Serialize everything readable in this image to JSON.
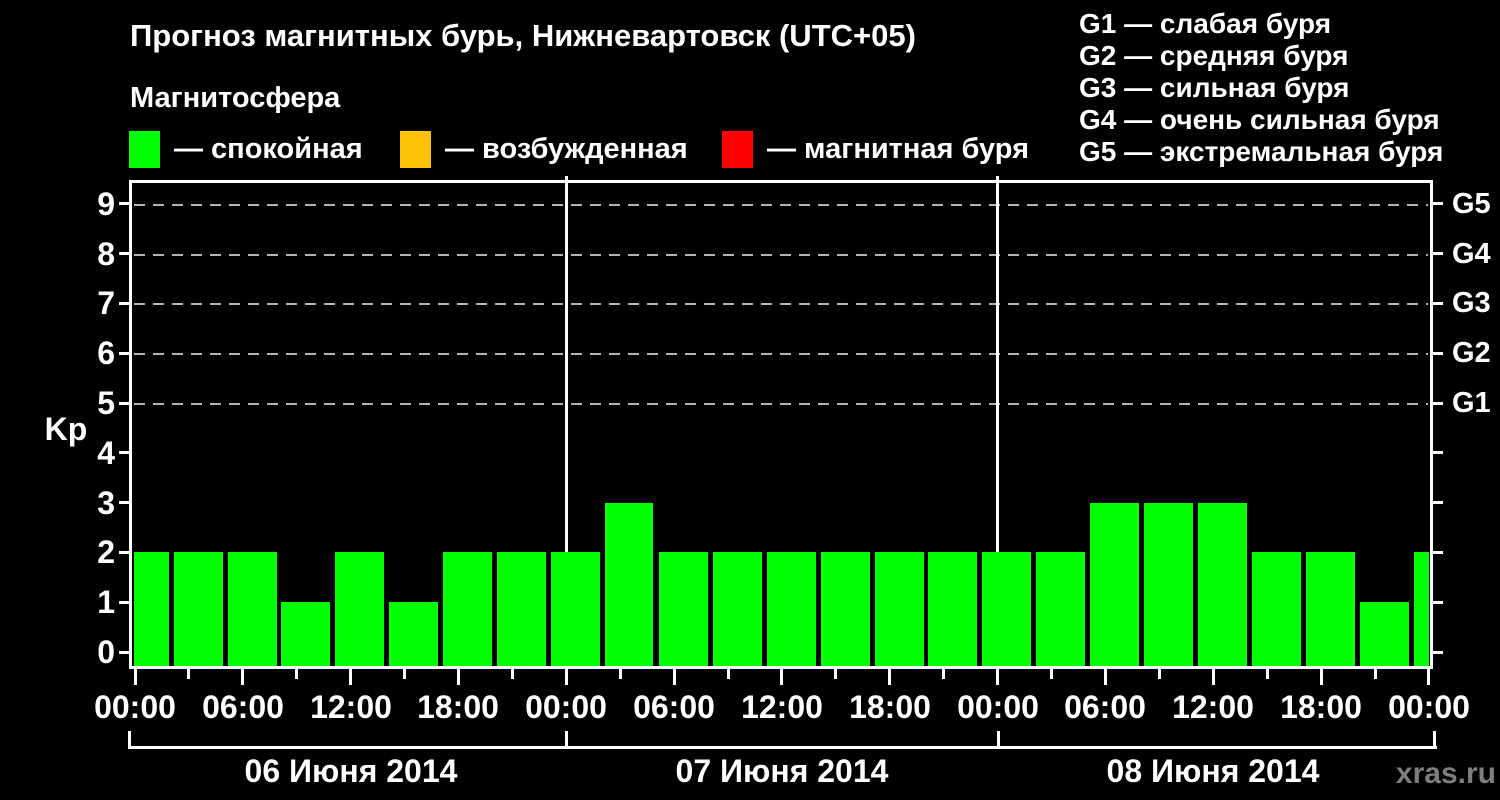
{
  "title": "Прогноз магнитных бурь, Нижневартовск (UTC+05)",
  "subtitle": "Магнитосфера",
  "legend": {
    "items": [
      {
        "name": "quiet",
        "label": "— спокойная",
        "color": "#00ff00"
      },
      {
        "name": "unsettled",
        "label": "— возбужденная",
        "color": "#ffc105"
      },
      {
        "name": "storm",
        "label": "— магнитная буря",
        "color": "#ff0000"
      }
    ]
  },
  "storm_scale_legend": [
    "G1 — слабая буря",
    "G2 — средняя буря",
    "G3 — сильная буря",
    "G4 — очень сильная буря",
    "G5 — экстремальная буря"
  ],
  "watermark": "xras.ru",
  "chart_data": {
    "type": "bar",
    "title": "Прогноз магнитных бурь, Нижневартовск (UTC+05)",
    "ylabel": "Kp",
    "ylim": [
      0,
      9
    ],
    "y_ticks": [
      0,
      1,
      2,
      3,
      4,
      5,
      6,
      7,
      8,
      9
    ],
    "grid": "dashed horizontal gridlines at Kp 5-9",
    "grid_color": "#b3b3b3",
    "bar_color": "#00ff00",
    "frame_color": "#ffffff",
    "background_color": "#000000",
    "legend_position": "top",
    "interval_hours": 3,
    "right_axis": {
      "labels": [
        "G1",
        "G2",
        "G3",
        "G4",
        "G5"
      ],
      "kp_levels": [
        5,
        6,
        7,
        8,
        9
      ]
    },
    "x_major_labels": [
      "00:00",
      "06:00",
      "12:00",
      "18:00",
      "00:00",
      "06:00",
      "12:00",
      "18:00",
      "00:00",
      "06:00",
      "12:00",
      "18:00",
      "00:00"
    ],
    "days": [
      {
        "date": "06 Июня 2014",
        "values": [
          2,
          2,
          2,
          1,
          2,
          1,
          2,
          2
        ]
      },
      {
        "date": "07 Июня 2014",
        "values": [
          2,
          3,
          2,
          2,
          2,
          2,
          2,
          2
        ]
      },
      {
        "date": "08 Июня 2014",
        "values": [
          2,
          2,
          3,
          3,
          3,
          2,
          2,
          1
        ]
      }
    ],
    "next_day_first_value": 2
  }
}
